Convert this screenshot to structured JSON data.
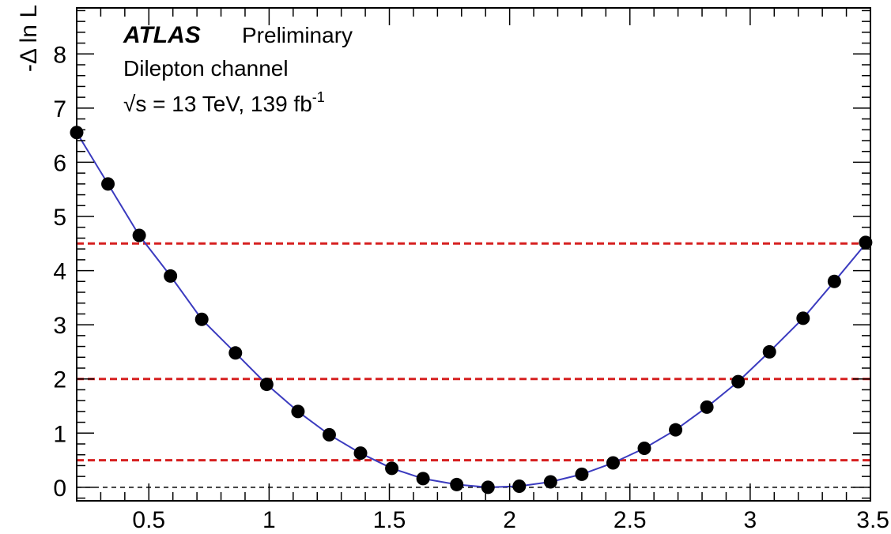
{
  "chart_data": {
    "type": "scatter",
    "title": "",
    "xlabel": "",
    "ylabel": "-Δ ln L",
    "xlim": [
      0.2,
      3.5
    ],
    "ylim": [
      -0.25,
      8.85
    ],
    "x_ticks": [
      0.5,
      1,
      1.5,
      2,
      2.5,
      3,
      3.5
    ],
    "x_tick_labels": [
      "0.5",
      "1",
      "1.5",
      "2",
      "2.5",
      "3",
      "3.5"
    ],
    "y_ticks": [
      0,
      1,
      2,
      3,
      4,
      5,
      6,
      7,
      8
    ],
    "y_tick_labels": [
      "0",
      "1",
      "2",
      "3",
      "4",
      "5",
      "6",
      "7",
      "8"
    ],
    "grid": false,
    "annotations": {
      "experiment": "ATLAS",
      "status": "Preliminary",
      "channel": "Dilepton channel",
      "energy": "√s = 13 TeV, 139 fb",
      "lumi_exponent": "-1"
    },
    "series": [
      {
        "kind": "points",
        "color": "#000000",
        "x": [
          0.2,
          0.33,
          0.46,
          0.59,
          0.72,
          0.86,
          0.99,
          1.12,
          1.25,
          1.38,
          1.51,
          1.64,
          1.78,
          1.91,
          2.04,
          2.17,
          2.3,
          2.43,
          2.56,
          2.69,
          2.82,
          2.95,
          3.08,
          3.22,
          3.35,
          3.48
        ],
        "y": [
          6.55,
          5.6,
          4.65,
          3.9,
          3.1,
          2.48,
          1.9,
          1.4,
          0.97,
          0.63,
          0.35,
          0.16,
          0.05,
          0.0,
          0.02,
          0.1,
          0.24,
          0.45,
          0.72,
          1.06,
          1.48,
          1.95,
          2.5,
          3.12,
          3.8,
          4.52
        ]
      },
      {
        "kind": "fit",
        "color": "#3b3bbf",
        "x": [
          0.2,
          0.33,
          0.46,
          0.59,
          0.72,
          0.86,
          0.99,
          1.12,
          1.25,
          1.38,
          1.51,
          1.64,
          1.78,
          1.91,
          2.04,
          2.17,
          2.3,
          2.43,
          2.56,
          2.69,
          2.82,
          2.95,
          3.08,
          3.22,
          3.35,
          3.5
        ],
        "y": [
          6.55,
          5.6,
          4.65,
          3.9,
          3.1,
          2.48,
          1.9,
          1.4,
          0.97,
          0.63,
          0.35,
          0.16,
          0.05,
          0.0,
          0.02,
          0.1,
          0.24,
          0.45,
          0.72,
          1.06,
          1.48,
          1.95,
          2.5,
          3.12,
          3.8,
          4.6
        ]
      }
    ],
    "reference_lines": [
      {
        "y": 0.5,
        "color": "#d62020",
        "style": "dashed"
      },
      {
        "y": 2.0,
        "color": "#d62020",
        "style": "dashed"
      },
      {
        "y": 4.5,
        "color": "#d62020",
        "style": "dashed"
      },
      {
        "y": 0.0,
        "color": "#000000",
        "style": "dashed"
      }
    ]
  }
}
